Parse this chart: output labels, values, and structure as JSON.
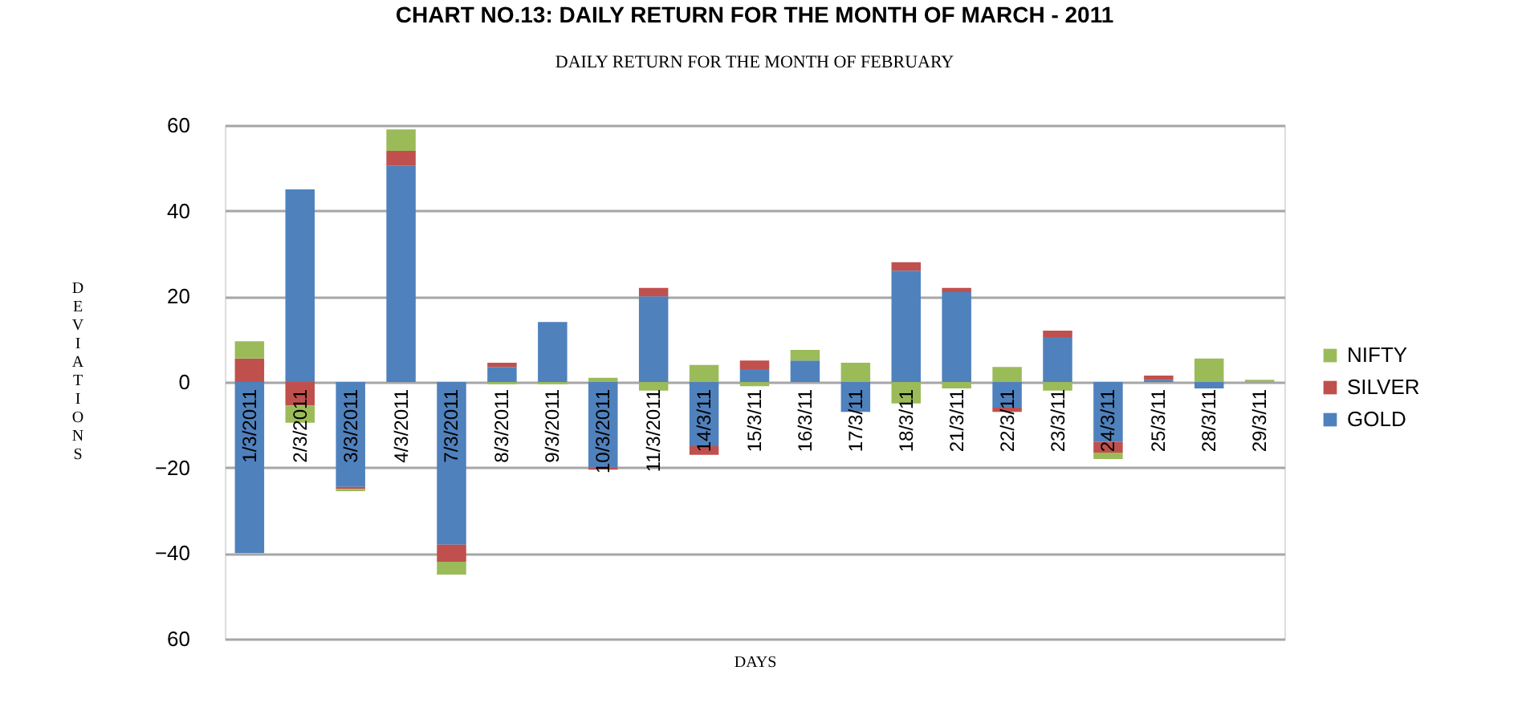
{
  "chart_data": {
    "type": "bar",
    "title": "CHART NO.13: DAILY RETURN FOR THE MONTH OF MARCH - 2011",
    "subtitle": "DAILY RETURN FOR THE MONTH OF FEBRUARY",
    "xlabel": "DAYS",
    "ylabel": "DEVIATIONS",
    "stacked": true,
    "categories": [
      "1/3/2011",
      "2/3/2011",
      "3/3/2011",
      "4/3/2011",
      "7/3/2011",
      "8/3/2011",
      "9/3/2011",
      "10/3/2011",
      "11/3/2011",
      "14/3/11",
      "15/3/11",
      "16/3/11",
      "17/3/11",
      "18/3/11",
      "21/3/11",
      "22/3/11",
      "23/3/11",
      "24/3/11",
      "25/3/11",
      "28/3/11",
      "29/3/11"
    ],
    "series": [
      {
        "name": "GOLD",
        "color": "#4f81bd",
        "values": [
          -40,
          45,
          -24.5,
          50.5,
          -38,
          3.5,
          14,
          -20,
          20,
          -15,
          3,
          5,
          -7,
          26,
          21,
          -6,
          10.5,
          -14,
          0.5,
          -1.5,
          null
        ]
      },
      {
        "name": "SILVER",
        "color": "#c0504d",
        "values": [
          5.5,
          -5.5,
          -0.5,
          3.5,
          -4,
          1,
          null,
          -0.5,
          2,
          -2,
          2,
          null,
          null,
          2,
          1,
          -1,
          1.5,
          -2.5,
          1,
          null,
          null
        ]
      },
      {
        "name": "NIFTY",
        "color": "#9bbb59",
        "values": [
          4,
          -4,
          -0.5,
          5,
          -3,
          -0.5,
          -0.5,
          1,
          -2,
          4,
          -1,
          2.5,
          4.5,
          -5,
          -1.5,
          3.5,
          -2,
          -1.5,
          null,
          5.5,
          0.5
        ]
      }
    ],
    "ylim": [
      -60,
      60
    ],
    "yticks": [
      {
        "value": -60,
        "label": "60"
      },
      -40,
      -20,
      0,
      20,
      40,
      60
    ],
    "grid": "y",
    "legend": "right"
  }
}
